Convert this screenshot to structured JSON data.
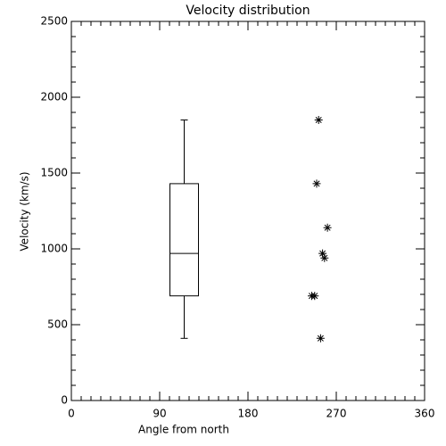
{
  "chart_data": {
    "type": "box",
    "title": "Velocity distribution",
    "xlabel": "Angle from north",
    "ylabel": "Velocity (km/s)",
    "box": {
      "x": 115,
      "min": 410,
      "q1": 690,
      "median": 970,
      "q3": 1430,
      "max": 1850
    },
    "points": {
      "x": [
        252,
        250,
        261,
        256,
        258,
        245,
        248,
        254
      ],
      "y": [
        1850,
        1430,
        1140,
        970,
        940,
        690,
        690,
        410
      ]
    },
    "color": "#000000",
    "xlim": [
      0,
      360
    ],
    "xticks": [
      0,
      90,
      180,
      270,
      360
    ],
    "xminor": 9,
    "ylim": [
      0,
      2500
    ],
    "yticks": [
      0,
      500,
      1000,
      1500,
      2000,
      2500
    ],
    "yminor": 5
  }
}
